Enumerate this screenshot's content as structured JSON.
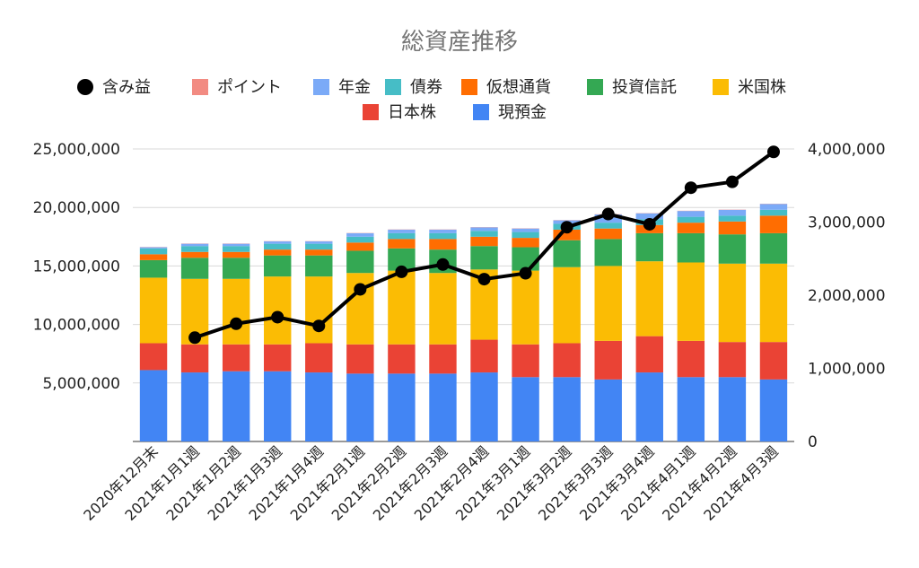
{
  "chart_data": {
    "type": "bar",
    "stacked": true,
    "title": "総資産推移",
    "legend": {
      "position": "top",
      "entries": [
        {
          "name": "含み益",
          "color": "#000000",
          "marker": "circle"
        },
        {
          "name": "ポイント",
          "color": "#F28B82",
          "marker": "square"
        },
        {
          "name": "年金",
          "color": "#7BAAF7",
          "marker": "square"
        },
        {
          "name": "債券",
          "color": "#46BDC6",
          "marker": "square"
        },
        {
          "name": "仮想通貨",
          "color": "#FF6D01",
          "marker": "square"
        },
        {
          "name": "投資信託",
          "color": "#34A853",
          "marker": "square"
        },
        {
          "name": "米国株",
          "color": "#FBBC04",
          "marker": "square"
        },
        {
          "name": "日本株",
          "color": "#EA4335",
          "marker": "square"
        },
        {
          "name": "現預金",
          "color": "#4285F4",
          "marker": "square"
        }
      ]
    },
    "categories": [
      "2020年12月末",
      "2021年1月1週",
      "2021年1月2週",
      "2021年1月3週",
      "2021年1月4週",
      "2021年2月1週",
      "2021年2月2週",
      "2021年2月3週",
      "2021年2月4週",
      "2021年3月1週",
      "2021年3月2週",
      "2021年3月3週",
      "2021年3月4週",
      "2021年4月1週",
      "2021年4月2週",
      "2021年4月3週"
    ],
    "y_left": {
      "min": 0,
      "max": 25000000,
      "ticks": [
        5000000,
        10000000,
        15000000,
        20000000,
        25000000
      ],
      "tick_labels": [
        "5,000,000",
        "10,000,000",
        "15,000,000",
        "20,000,000",
        "25,000,000"
      ]
    },
    "y_right": {
      "min": 0,
      "max": 4000000,
      "ticks": [
        0,
        1000000,
        2000000,
        3000000,
        4000000
      ],
      "tick_labels": [
        "0",
        "1,000,000",
        "2,000,000",
        "3,000,000",
        "4,000,000"
      ]
    },
    "grid": true,
    "stack_series": [
      {
        "name": "現預金",
        "color": "#4285F4",
        "values": [
          6100000,
          5900000,
          6000000,
          6000000,
          5900000,
          5800000,
          5800000,
          5800000,
          5900000,
          5500000,
          5500000,
          5300000,
          5900000,
          5500000,
          5500000,
          5300000
        ]
      },
      {
        "name": "日本株",
        "color": "#EA4335",
        "values": [
          2300000,
          2400000,
          2300000,
          2300000,
          2500000,
          2500000,
          2500000,
          2500000,
          2800000,
          2800000,
          2900000,
          3300000,
          3100000,
          3100000,
          3000000,
          3200000
        ]
      },
      {
        "name": "米国株",
        "color": "#FBBC04",
        "values": [
          5600000,
          5600000,
          5600000,
          5800000,
          5700000,
          6100000,
          6300000,
          6100000,
          6000000,
          6300000,
          6500000,
          6400000,
          6400000,
          6700000,
          6700000,
          6700000
        ]
      },
      {
        "name": "投資信託",
        "color": "#34A853",
        "values": [
          1500000,
          1800000,
          1800000,
          1800000,
          1800000,
          1900000,
          1900000,
          2000000,
          2000000,
          2000000,
          2300000,
          2300000,
          2400000,
          2500000,
          2500000,
          2600000
        ]
      },
      {
        "name": "仮想通貨",
        "color": "#FF6D01",
        "values": [
          500000,
          500000,
          500000,
          500000,
          500000,
          700000,
          800000,
          900000,
          800000,
          800000,
          900000,
          900000,
          700000,
          900000,
          1100000,
          1500000
        ]
      },
      {
        "name": "債券",
        "color": "#46BDC6",
        "values": [
          500000,
          500000,
          500000,
          500000,
          500000,
          500000,
          500000,
          500000,
          500000,
          500000,
          500000,
          500000,
          500000,
          500000,
          500000,
          500000
        ]
      },
      {
        "name": "年金",
        "color": "#7BAAF7",
        "values": [
          100000,
          200000,
          200000,
          200000,
          200000,
          300000,
          300000,
          300000,
          300000,
          300000,
          300000,
          700000,
          500000,
          500000,
          500000,
          500000
        ]
      },
      {
        "name": "ポイント",
        "color": "#F28B82",
        "values": [
          20000,
          20000,
          20000,
          20000,
          20000,
          20000,
          20000,
          20000,
          20000,
          20000,
          20000,
          20000,
          20000,
          20000,
          20000,
          20000
        ]
      }
    ],
    "line_series": {
      "name": "含み益",
      "color": "#000000",
      "axis": "right",
      "values": [
        null,
        1420000,
        1610000,
        1700000,
        1580000,
        2080000,
        2320000,
        2420000,
        2220000,
        2300000,
        2930000,
        3110000,
        2970000,
        3470000,
        3550000,
        3960000
      ]
    }
  }
}
